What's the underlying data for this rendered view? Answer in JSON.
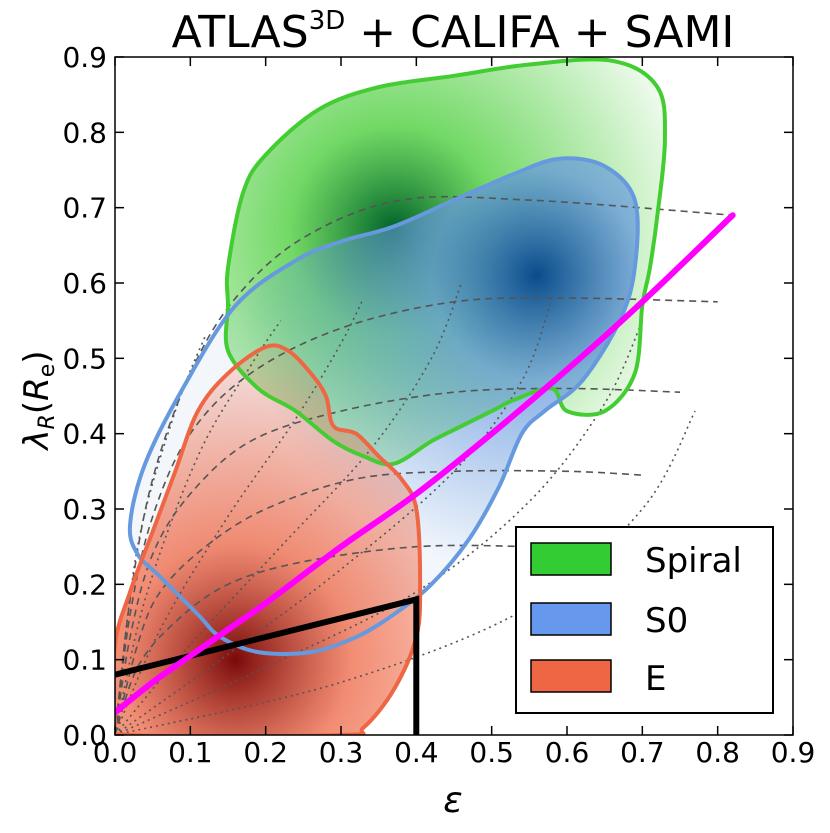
{
  "chart_data": {
    "type": "contour",
    "title": "ATLAS",
    "title_superscript": "3D",
    "title_suffix": " + CALIFA + SAMI",
    "xlabel": "ε",
    "ylabel_main": "λ",
    "ylabel_sub": "R",
    "ylabel_arg": "R",
    "ylabel_arg_sub": "e",
    "xlim": [
      0.0,
      0.9
    ],
    "ylim": [
      0.0,
      0.9
    ],
    "xticks": [
      0.0,
      0.1,
      0.2,
      0.3,
      0.4,
      0.5,
      0.6,
      0.7,
      0.8,
      0.9
    ],
    "yticks": [
      0.0,
      0.1,
      0.2,
      0.3,
      0.4,
      0.5,
      0.6,
      0.7,
      0.8,
      0.9
    ],
    "tick_labels": [
      "0.0",
      "0.1",
      "0.2",
      "0.3",
      "0.4",
      "0.5",
      "0.6",
      "0.7",
      "0.8",
      "0.9"
    ],
    "legend": {
      "position": "lower-right",
      "entries": [
        {
          "label": "Spiral",
          "color": "#33cc33"
        },
        {
          "label": "S0",
          "color": "#6699ee"
        },
        {
          "label": "E",
          "color": "#ee6644"
        }
      ]
    },
    "series": [
      {
        "name": "Spiral",
        "outline_color": "#44cc33",
        "fill_color": "#00602a",
        "peak": [
          0.37,
          0.67
        ],
        "outline": [
          [
            0.15,
            0.62
          ],
          [
            0.17,
            0.72
          ],
          [
            0.2,
            0.77
          ],
          [
            0.27,
            0.83
          ],
          [
            0.35,
            0.86
          ],
          [
            0.45,
            0.875
          ],
          [
            0.55,
            0.89
          ],
          [
            0.66,
            0.895
          ],
          [
            0.72,
            0.86
          ],
          [
            0.73,
            0.79
          ],
          [
            0.72,
            0.69
          ],
          [
            0.71,
            0.62
          ],
          [
            0.7,
            0.57
          ],
          [
            0.69,
            0.48
          ],
          [
            0.65,
            0.43
          ],
          [
            0.6,
            0.43
          ],
          [
            0.58,
            0.46
          ],
          [
            0.53,
            0.445
          ],
          [
            0.5,
            0.43
          ],
          [
            0.46,
            0.41
          ],
          [
            0.42,
            0.39
          ],
          [
            0.37,
            0.36
          ],
          [
            0.33,
            0.37
          ],
          [
            0.29,
            0.39
          ],
          [
            0.24,
            0.43
          ],
          [
            0.19,
            0.46
          ],
          [
            0.15,
            0.51
          ],
          [
            0.15,
            0.57
          ]
        ]
      },
      {
        "name": "S0",
        "outline_color": "#6699dd",
        "fill_color": "#0a4c8c",
        "peak": [
          0.56,
          0.61
        ],
        "outline": [
          [
            0.02,
            0.28
          ],
          [
            0.04,
            0.36
          ],
          [
            0.09,
            0.46
          ],
          [
            0.16,
            0.57
          ],
          [
            0.24,
            0.63
          ],
          [
            0.3,
            0.655
          ],
          [
            0.37,
            0.675
          ],
          [
            0.45,
            0.71
          ],
          [
            0.53,
            0.745
          ],
          [
            0.59,
            0.765
          ],
          [
            0.65,
            0.755
          ],
          [
            0.69,
            0.71
          ],
          [
            0.69,
            0.62
          ],
          [
            0.67,
            0.55
          ],
          [
            0.62,
            0.47
          ],
          [
            0.57,
            0.43
          ],
          [
            0.54,
            0.4
          ],
          [
            0.51,
            0.33
          ],
          [
            0.47,
            0.26
          ],
          [
            0.42,
            0.2
          ],
          [
            0.37,
            0.16
          ],
          [
            0.32,
            0.13
          ],
          [
            0.26,
            0.11
          ],
          [
            0.19,
            0.11
          ],
          [
            0.14,
            0.13
          ],
          [
            0.11,
            0.16
          ],
          [
            0.06,
            0.21
          ],
          [
            0.03,
            0.24
          ]
        ]
      },
      {
        "name": "E",
        "outline_color": "#ee6644",
        "fill_color": "#7a0a0a",
        "peak": [
          0.16,
          0.1
        ],
        "outline": [
          [
            0.0,
            0.12
          ],
          [
            0.02,
            0.19
          ],
          [
            0.05,
            0.27
          ],
          [
            0.08,
            0.35
          ],
          [
            0.11,
            0.43
          ],
          [
            0.15,
            0.48
          ],
          [
            0.2,
            0.515
          ],
          [
            0.23,
            0.51
          ],
          [
            0.26,
            0.48
          ],
          [
            0.28,
            0.45
          ],
          [
            0.29,
            0.41
          ],
          [
            0.32,
            0.4
          ],
          [
            0.35,
            0.37
          ],
          [
            0.38,
            0.34
          ],
          [
            0.4,
            0.3
          ],
          [
            0.405,
            0.2
          ],
          [
            0.4,
            0.13
          ],
          [
            0.37,
            0.06
          ],
          [
            0.33,
            0.01
          ],
          [
            0.3,
            0.0
          ],
          [
            0.02,
            0.0
          ],
          [
            0.0,
            0.02
          ]
        ]
      }
    ],
    "magenta_line": {
      "color": "#ff00ff",
      "points": [
        [
          0.0,
          0.03
        ],
        [
          0.05,
          0.07
        ],
        [
          0.1,
          0.105
        ],
        [
          0.15,
          0.14
        ],
        [
          0.2,
          0.175
        ],
        [
          0.3,
          0.25
        ],
        [
          0.4,
          0.32
        ],
        [
          0.5,
          0.4
        ],
        [
          0.6,
          0.485
        ],
        [
          0.7,
          0.575
        ],
        [
          0.82,
          0.69
        ]
      ]
    },
    "black_region": {
      "color": "#000000",
      "points": [
        [
          0.0,
          0.08
        ],
        [
          0.4,
          0.18
        ],
        [
          0.4,
          0.0
        ]
      ]
    },
    "dashed_curves": [
      [
        [
          0.0,
          0.0
        ],
        [
          0.02,
          0.18
        ],
        [
          0.05,
          0.34
        ],
        [
          0.1,
          0.48
        ],
        [
          0.16,
          0.58
        ],
        [
          0.25,
          0.66
        ],
        [
          0.38,
          0.71
        ],
        [
          0.55,
          0.71
        ],
        [
          0.82,
          0.69
        ]
      ],
      [
        [
          0.0,
          0.0
        ],
        [
          0.02,
          0.16
        ],
        [
          0.05,
          0.29
        ],
        [
          0.1,
          0.4
        ],
        [
          0.18,
          0.48
        ],
        [
          0.3,
          0.54
        ],
        [
          0.45,
          0.575
        ],
        [
          0.6,
          0.58
        ],
        [
          0.8,
          0.575
        ]
      ],
      [
        [
          0.0,
          0.0
        ],
        [
          0.02,
          0.13
        ],
        [
          0.05,
          0.24
        ],
        [
          0.1,
          0.32
        ],
        [
          0.18,
          0.39
        ],
        [
          0.3,
          0.43
        ],
        [
          0.45,
          0.455
        ],
        [
          0.6,
          0.46
        ],
        [
          0.75,
          0.455
        ]
      ],
      [
        [
          0.0,
          0.0
        ],
        [
          0.03,
          0.12
        ],
        [
          0.06,
          0.19
        ],
        [
          0.12,
          0.25
        ],
        [
          0.2,
          0.3
        ],
        [
          0.32,
          0.34
        ],
        [
          0.45,
          0.35
        ],
        [
          0.6,
          0.35
        ],
        [
          0.7,
          0.345
        ]
      ],
      [
        [
          0.0,
          0.0
        ],
        [
          0.03,
          0.09
        ],
        [
          0.08,
          0.15
        ],
        [
          0.15,
          0.2
        ],
        [
          0.25,
          0.23
        ],
        [
          0.4,
          0.25
        ],
        [
          0.55,
          0.25
        ],
        [
          0.65,
          0.245
        ]
      ]
    ],
    "dotted_curves": [
      [
        [
          0.0,
          0.0
        ],
        [
          0.03,
          0.25
        ],
        [
          0.08,
          0.43
        ],
        [
          0.12,
          0.53
        ]
      ],
      [
        [
          0.0,
          0.0
        ],
        [
          0.04,
          0.18
        ],
        [
          0.11,
          0.37
        ],
        [
          0.18,
          0.49
        ],
        [
          0.22,
          0.55
        ]
      ],
      [
        [
          0.0,
          0.0
        ],
        [
          0.06,
          0.14
        ],
        [
          0.15,
          0.29
        ],
        [
          0.24,
          0.42
        ],
        [
          0.3,
          0.52
        ],
        [
          0.33,
          0.58
        ]
      ],
      [
        [
          0.0,
          0.0
        ],
        [
          0.1,
          0.12
        ],
        [
          0.22,
          0.25
        ],
        [
          0.34,
          0.38
        ],
        [
          0.42,
          0.5
        ],
        [
          0.46,
          0.6
        ]
      ],
      [
        [
          0.0,
          0.0
        ],
        [
          0.14,
          0.1
        ],
        [
          0.3,
          0.22
        ],
        [
          0.45,
          0.35
        ],
        [
          0.54,
          0.47
        ],
        [
          0.58,
          0.58
        ]
      ],
      [
        [
          0.0,
          0.0
        ],
        [
          0.2,
          0.09
        ],
        [
          0.4,
          0.19
        ],
        [
          0.55,
          0.31
        ],
        [
          0.65,
          0.44
        ],
        [
          0.7,
          0.55
        ]
      ],
      [
        [
          0.0,
          0.0
        ],
        [
          0.3,
          0.07
        ],
        [
          0.55,
          0.17
        ],
        [
          0.7,
          0.3
        ],
        [
          0.77,
          0.43
        ]
      ]
    ]
  }
}
